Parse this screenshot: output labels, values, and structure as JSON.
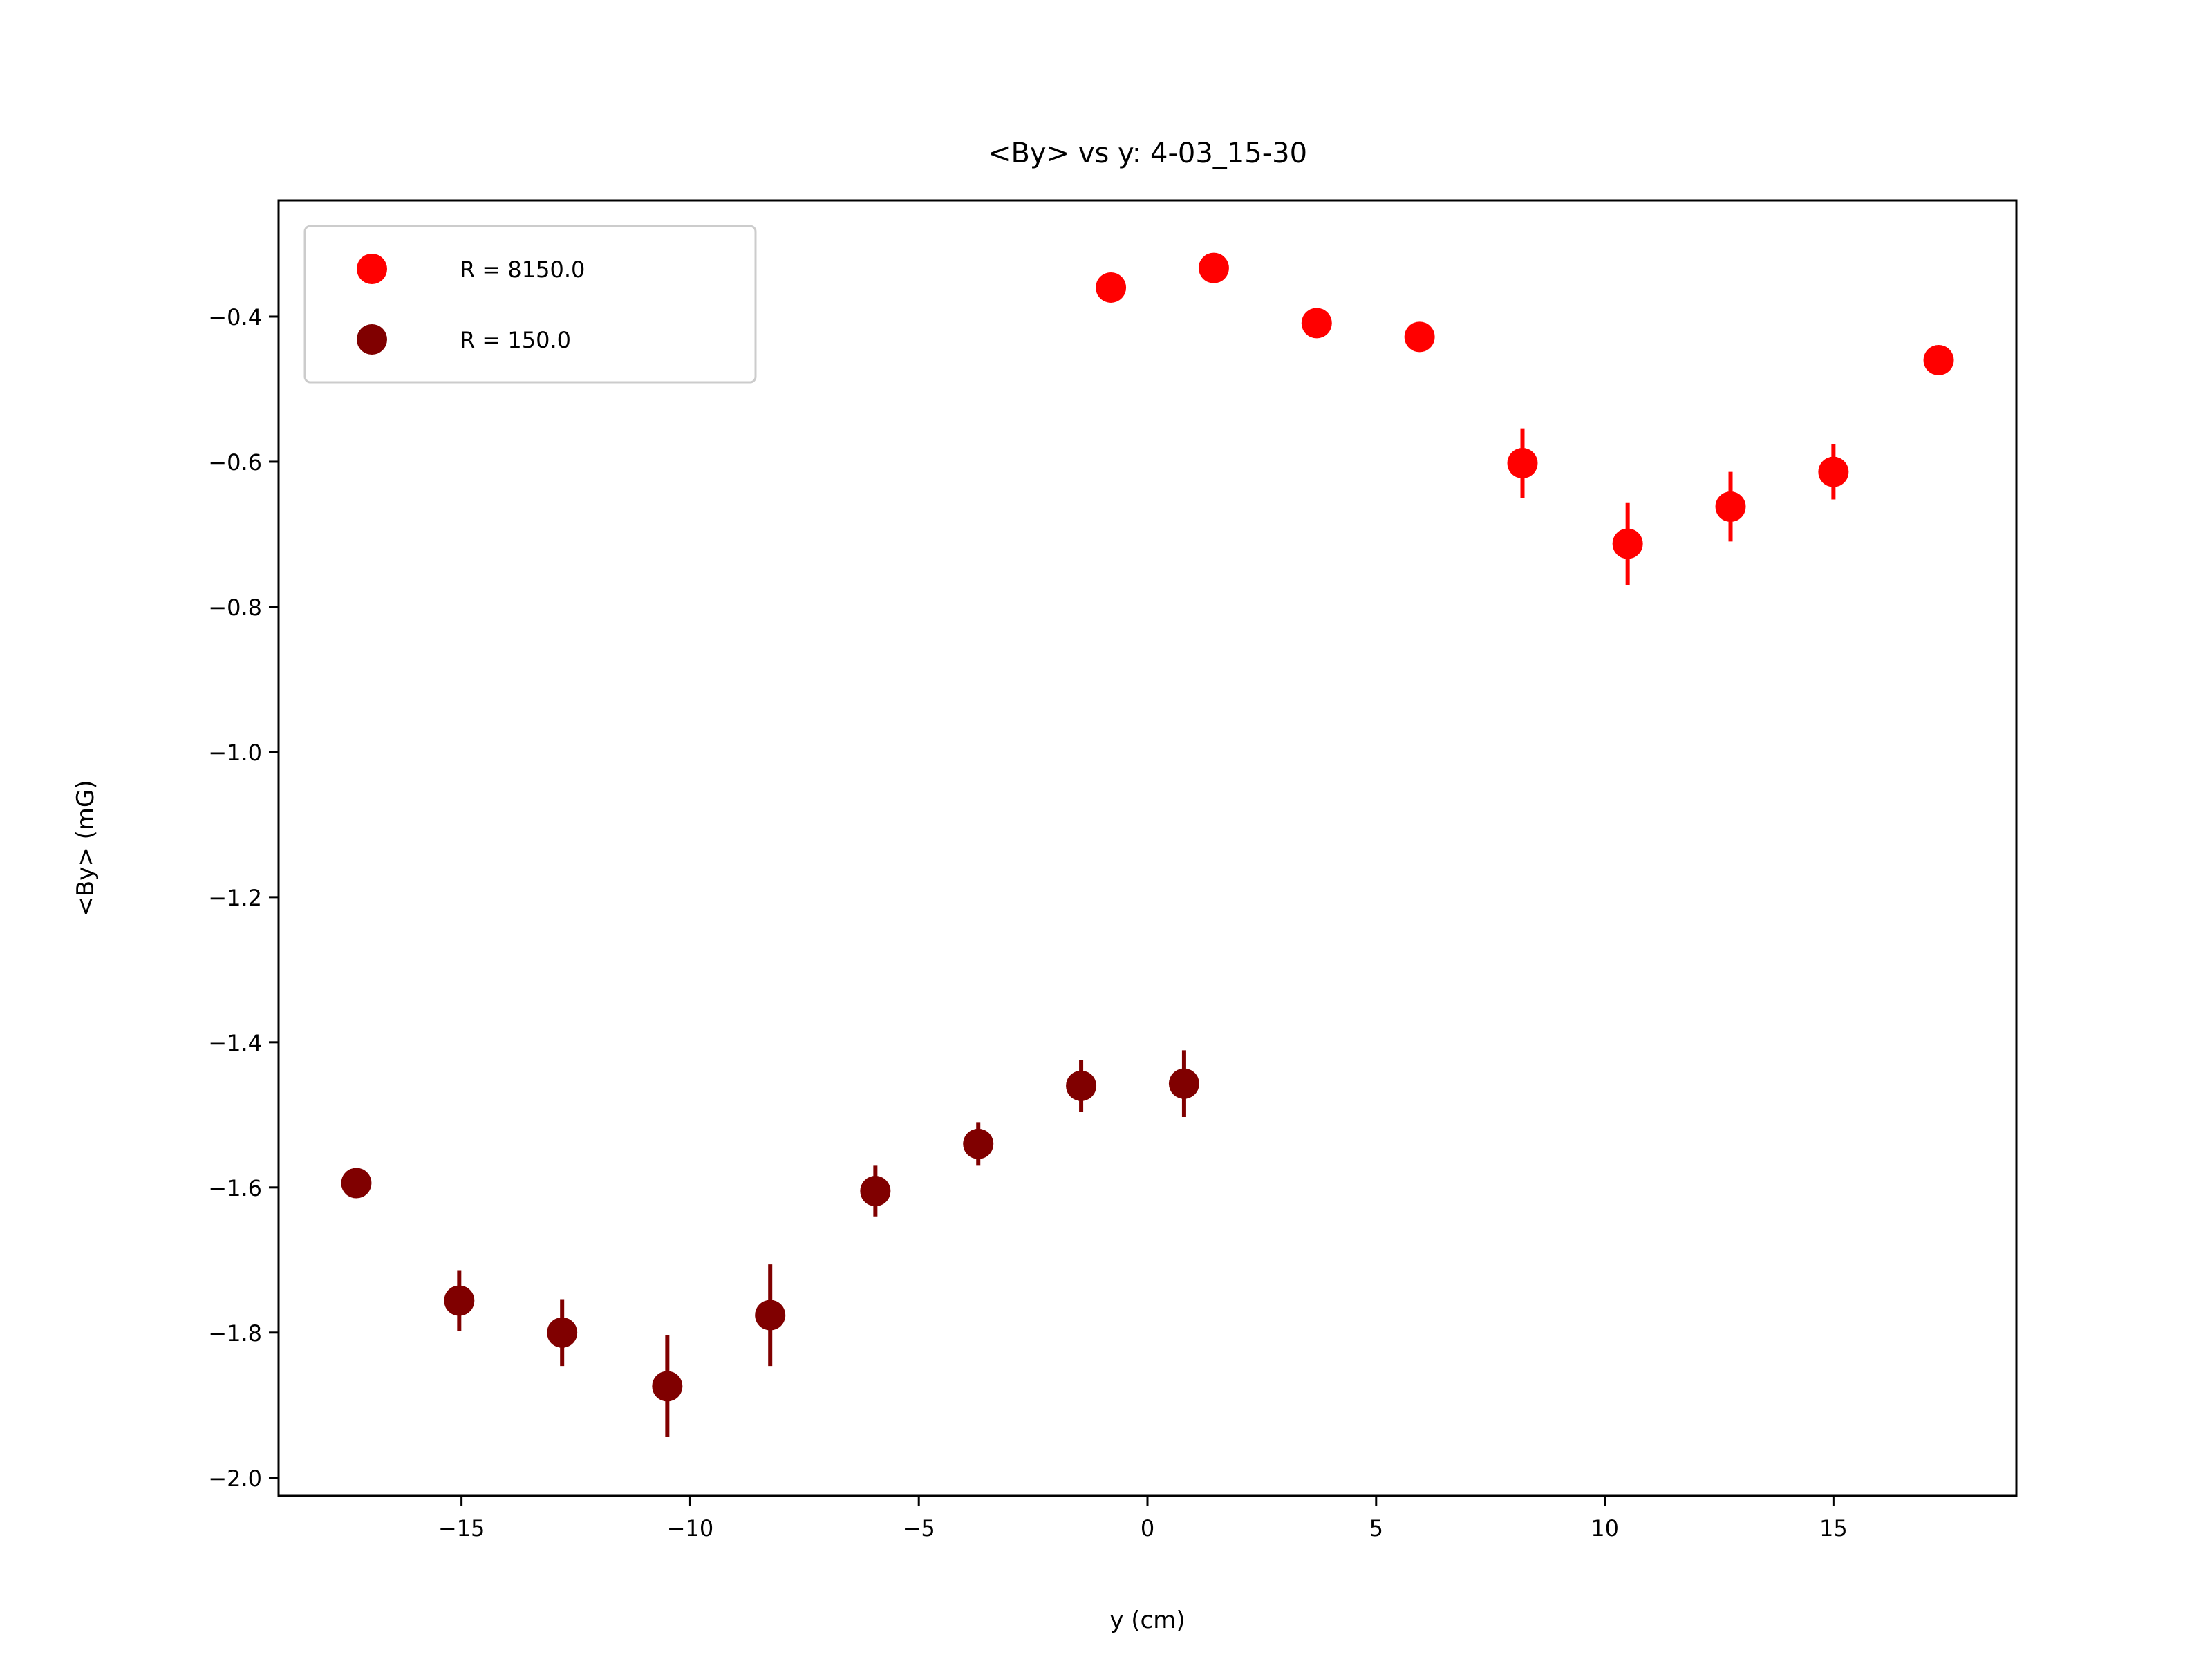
{
  "chart_data": {
    "type": "scatter",
    "title": "<By> vs y: 4-03_15-30",
    "xlabel": "y (cm)",
    "ylabel": "<By> (mG)",
    "xlim": [
      -19,
      19
    ],
    "ylim": [
      -2.025,
      -0.24
    ],
    "x_ticks": [
      -15,
      -10,
      -5,
      0,
      5,
      10,
      15
    ],
    "x_tick_labels": [
      "−15",
      "−10",
      "−5",
      "0",
      "5",
      "10",
      "15"
    ],
    "y_ticks": [
      -2.0,
      -1.8,
      -1.6,
      -1.4,
      -1.2,
      -1.0,
      -0.8,
      -0.6,
      -0.4
    ],
    "y_tick_labels": [
      "−2.0",
      "−1.8",
      "−1.6",
      "−1.4",
      "−1.2",
      "−1.0",
      "−0.8",
      "−0.6",
      "−0.4"
    ],
    "grid": false,
    "legend_position": "top-left",
    "series": [
      {
        "name": "R = 8150.0",
        "color": "#ff0000",
        "x": [
          -0.8,
          1.45,
          3.7,
          5.95,
          8.2,
          10.5,
          12.75,
          15.0,
          17.3
        ],
        "y": [
          -0.36,
          -0.333,
          -0.409,
          -0.428,
          -0.602,
          -0.713,
          -0.662,
          -0.614,
          -0.46
        ],
        "yerr": [
          0.008,
          0.008,
          0.008,
          0.008,
          0.048,
          0.057,
          0.048,
          0.038,
          0.008
        ]
      },
      {
        "name": "R = 150.0",
        "color": "#800000",
        "x": [
          -17.3,
          -15.05,
          -12.8,
          -10.5,
          -8.25,
          -5.95,
          -3.7,
          -1.45,
          0.8
        ],
        "y": [
          -1.594,
          -1.756,
          -1.8,
          -1.874,
          -1.776,
          -1.605,
          -1.54,
          -1.46,
          -1.457
        ],
        "yerr": [
          0.008,
          0.042,
          0.046,
          0.07,
          0.07,
          0.035,
          0.03,
          0.036,
          0.046
        ]
      }
    ]
  }
}
